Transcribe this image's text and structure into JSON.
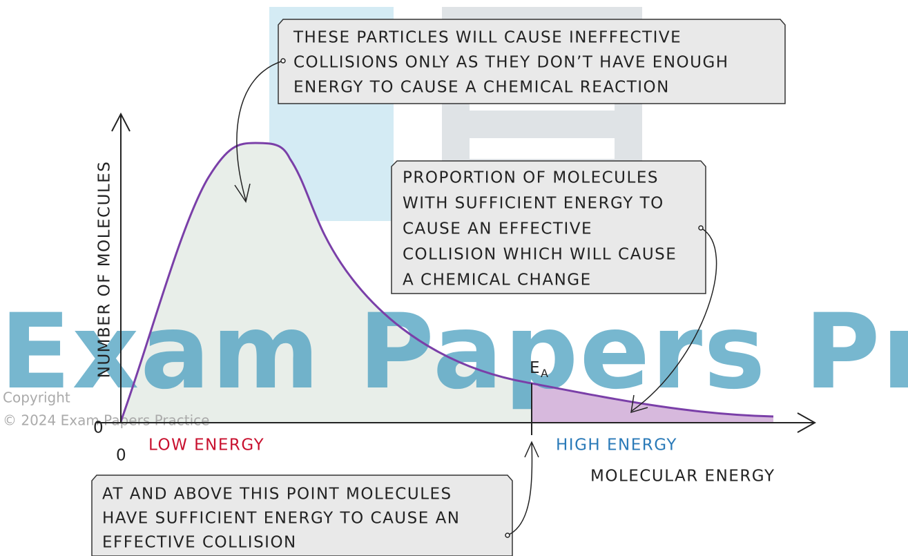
{
  "watermark": {
    "brand": "Exam Papers Practice",
    "copyright": "Copyright",
    "notice": "© 2024 Exam Papers Practice"
  },
  "axes": {
    "y_label": "NUMBER OF MOLECULES",
    "x_label": "MOLECULAR ENERGY",
    "y_origin": "0",
    "x_origin": "0"
  },
  "regions": {
    "low": "LOW ENERGY",
    "high": "HIGH ENERGY"
  },
  "activation_energy": {
    "symbol": "E",
    "subscript": "A"
  },
  "callouts": [
    {
      "lines": [
        "THESE PARTICLES WILL CAUSE INEFFECTIVE",
        "COLLISIONS ONLY AS THEY DON’T HAVE ENOUGH",
        "ENERGY TO CAUSE A CHEMICAL REACTION"
      ]
    },
    {
      "lines": [
        "PROPORTION OF MOLECULES",
        "WITH SUFFICIENT ENERGY TO",
        "CAUSE AN EFFECTIVE",
        "COLLISION WHICH WILL CAUSE",
        "A CHEMICAL CHANGE"
      ]
    },
    {
      "lines": [
        "AT AND ABOVE THIS POINT MOLECULES",
        "HAVE SUFFICIENT ENERGY TO CAUSE AN",
        "EFFECTIVE COLLISION"
      ]
    }
  ]
}
